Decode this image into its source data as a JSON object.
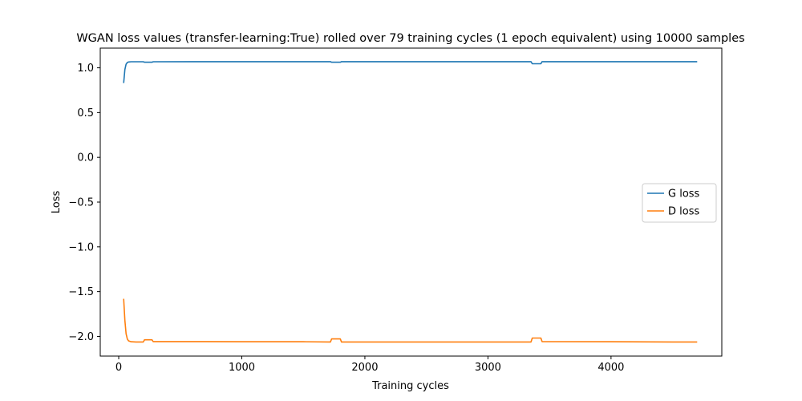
{
  "chart_data": {
    "type": "line",
    "title": "WGAN loss values (transfer-learning:True) rolled over 79 training cycles (1 epoch equivalent) using 10000 samples",
    "xlabel": "Training cycles",
    "ylabel": "Loss",
    "xlim": [
      -150,
      4900
    ],
    "ylim": [
      -2.22,
      1.22
    ],
    "xticks": [
      0,
      1000,
      2000,
      3000,
      4000
    ],
    "xtick_labels": [
      "0",
      "1000",
      "2000",
      "3000",
      "4000"
    ],
    "yticks": [
      1.0,
      0.5,
      0.0,
      -0.5,
      -1.0,
      -1.5,
      -2.0
    ],
    "ytick_labels": [
      "1.0",
      "0.5",
      "0.0",
      "−0.5",
      "−1.0",
      "−1.5",
      "−2.0"
    ],
    "grid": false,
    "legend_position": "center-right",
    "series": [
      {
        "name": "G loss",
        "color": "#1f77b4",
        "x": [
          40,
          50,
          60,
          70,
          80,
          100,
          140,
          200,
          210,
          270,
          280,
          600,
          1000,
          1500,
          1720,
          1730,
          1800,
          1810,
          2500,
          3000,
          3350,
          3360,
          3430,
          3440,
          4000,
          4500,
          4700
        ],
        "y": [
          0.83,
          0.98,
          1.04,
          1.06,
          1.065,
          1.068,
          1.068,
          1.068,
          1.062,
          1.062,
          1.068,
          1.069,
          1.069,
          1.069,
          1.069,
          1.062,
          1.062,
          1.069,
          1.069,
          1.069,
          1.069,
          1.045,
          1.045,
          1.069,
          1.069,
          1.069,
          1.069
        ]
      },
      {
        "name": "D loss",
        "color": "#ff7f0e",
        "x": [
          40,
          50,
          60,
          70,
          80,
          100,
          140,
          200,
          210,
          270,
          280,
          600,
          1000,
          1500,
          1720,
          1730,
          1800,
          1810,
          2500,
          3000,
          3350,
          3360,
          3430,
          3440,
          4000,
          4500,
          4700
        ],
        "y": [
          -1.58,
          -1.82,
          -1.97,
          -2.03,
          -2.05,
          -2.06,
          -2.062,
          -2.062,
          -2.038,
          -2.038,
          -2.058,
          -2.058,
          -2.06,
          -2.06,
          -2.062,
          -2.028,
          -2.028,
          -2.062,
          -2.062,
          -2.062,
          -2.062,
          -2.018,
          -2.018,
          -2.058,
          -2.06,
          -2.062,
          -2.062
        ]
      }
    ]
  }
}
